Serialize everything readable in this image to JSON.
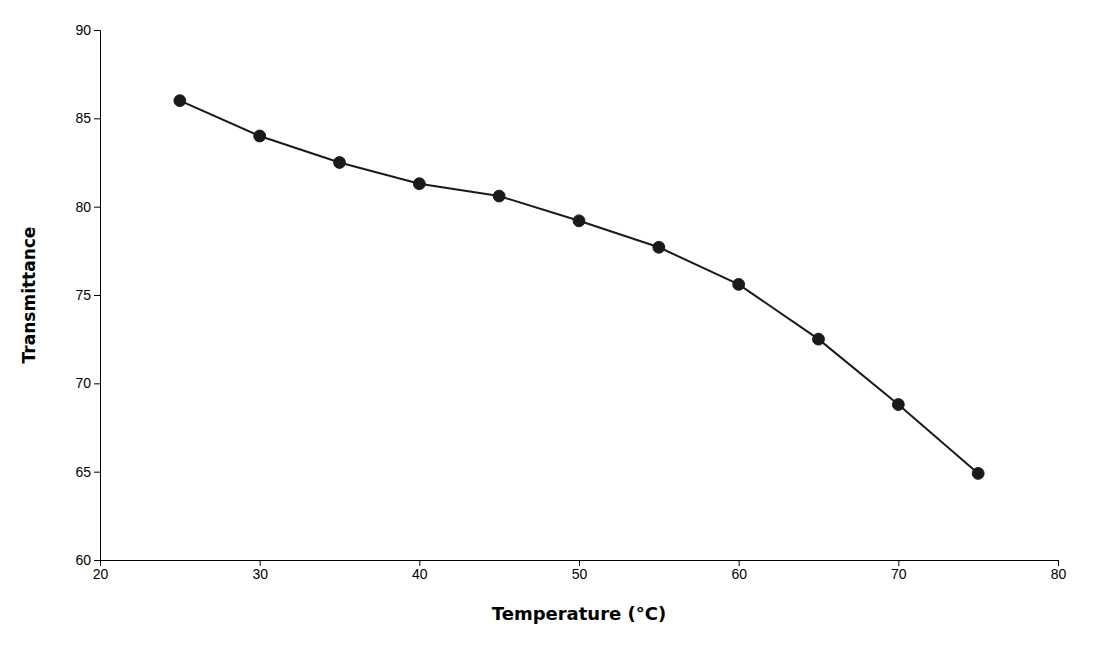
{
  "chart_data": {
    "type": "line",
    "xlabel": "Temperature (°C)",
    "ylabel": "Transmittance",
    "x": [
      25,
      30,
      35,
      40,
      45,
      50,
      55,
      60,
      65,
      70,
      75
    ],
    "values": [
      86.0,
      84.0,
      82.5,
      81.3,
      80.6,
      79.2,
      77.7,
      75.6,
      72.5,
      68.8,
      64.9
    ],
    "color": "#1a1a1a",
    "marker": "circle",
    "xlim": [
      20,
      80
    ],
    "ylim": [
      60,
      90
    ],
    "xticks": [
      20,
      30,
      40,
      50,
      60,
      70,
      80
    ],
    "yticks": [
      60,
      65,
      70,
      75,
      80,
      85,
      90
    ]
  }
}
